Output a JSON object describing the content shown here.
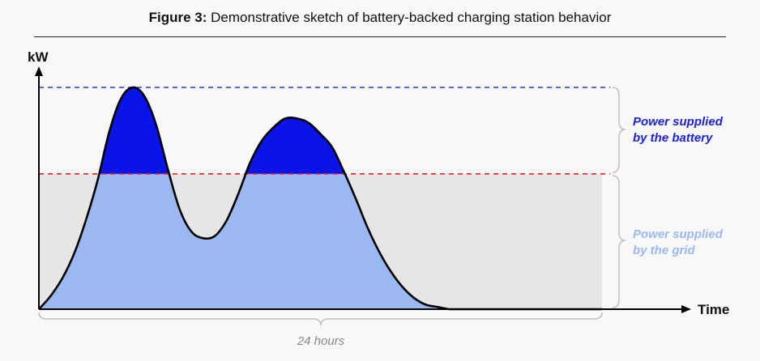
{
  "title": {
    "figure_number": "Figure 3:",
    "text": " Demonstrative sketch of battery-backed charging station behavior"
  },
  "axes": {
    "y_label": "kW",
    "x_label": "Time"
  },
  "annotations": {
    "battery_line1": "Power supplied",
    "battery_line2": "by the battery",
    "grid_line1": "Power supplied",
    "grid_line2": "by the grid",
    "duration": "24 hours"
  },
  "colors": {
    "battery": "#0a14e6",
    "grid": "#9bb8f0",
    "grid_capacity_bg": "#e6e6e6",
    "peak_line": "#2a33d8",
    "grid_limit_line": "#e82020",
    "annotation_battery": "#1a1fe0",
    "annotation_grid": "#9bb8f0"
  },
  "chart_data": {
    "type": "area",
    "x_span_hours": 24,
    "peak_level": 1.0,
    "grid_limit_level": 0.61,
    "curve": {
      "x": [
        0,
        0.5,
        1.0,
        1.5,
        2.0,
        2.5,
        3.0,
        3.5,
        4.0,
        4.5,
        5.0,
        5.5,
        6.0,
        6.5,
        7.0,
        7.5,
        8.0,
        8.5,
        9.0,
        9.5,
        10.0,
        10.5,
        11.0,
        11.5,
        12.0,
        12.5,
        13.0,
        13.5,
        14.0,
        14.5,
        15.0,
        15.5,
        16.0,
        16.5,
        17.0,
        17.5,
        18.0,
        18.5,
        19.0,
        19.5,
        20.0,
        20.5,
        21.0,
        21.5,
        22.0,
        22.5,
        23.0,
        23.5,
        24.0
      ],
      "y": [
        0.0,
        0.06,
        0.14,
        0.25,
        0.4,
        0.58,
        0.8,
        0.95,
        1.0,
        0.96,
        0.83,
        0.63,
        0.45,
        0.35,
        0.32,
        0.33,
        0.4,
        0.52,
        0.66,
        0.76,
        0.82,
        0.86,
        0.86,
        0.84,
        0.79,
        0.73,
        0.62,
        0.5,
        0.37,
        0.26,
        0.17,
        0.1,
        0.05,
        0.02,
        0.01,
        0.0,
        0.0,
        0.0,
        0.0,
        0.0,
        0.0,
        0.0,
        0.0,
        0.0,
        0.0,
        0.0,
        0.0,
        0.0,
        0.0
      ]
    }
  }
}
